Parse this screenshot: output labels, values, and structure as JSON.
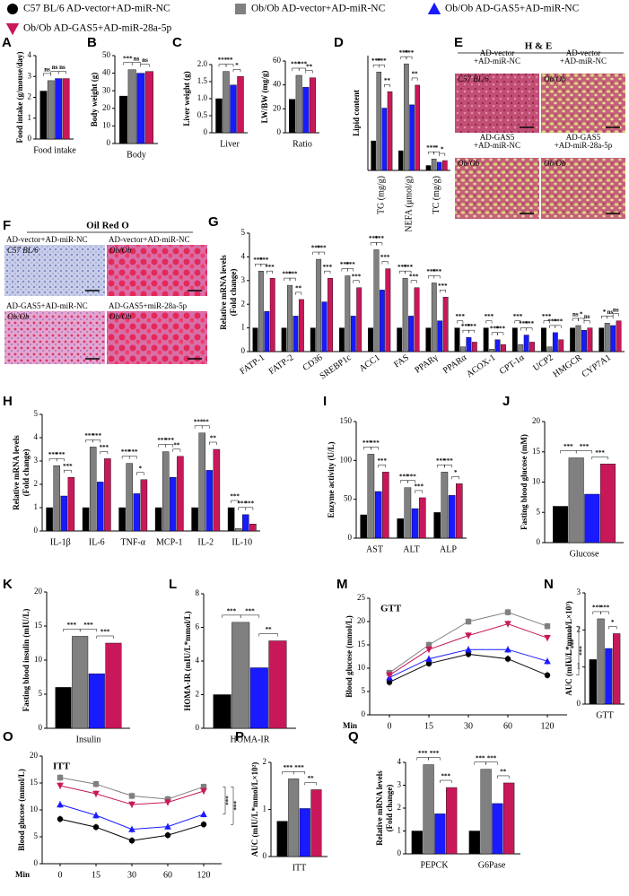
{
  "legend": [
    {
      "name": "C57 BL/6 AD-vector+AD-miR-NC",
      "color": "#000000",
      "marker": "circle"
    },
    {
      "name": "Ob/Ob AD-vector+AD-miR-NC",
      "color": "#808080",
      "marker": "square"
    },
    {
      "name": "Ob/Ob AD-GAS5+AD-miR-NC",
      "color": "#1a1aff",
      "marker": "triangle"
    },
    {
      "name": "Ob/Ob AD-GAS5+AD-miR-28a-5p",
      "color": "#c8185a",
      "marker": "triangle-down"
    }
  ],
  "chart_data": [
    {
      "type": "bar",
      "panel": "A",
      "ylabel": "Food intake (g/mouse/day)",
      "ylim": [
        0,
        4
      ],
      "yticks": [
        0,
        1,
        2,
        3,
        4
      ],
      "categories": [
        "Food intake"
      ],
      "series": [
        {
          "values": [
            2.3
          ]
        },
        {
          "values": [
            2.8
          ]
        },
        {
          "values": [
            2.9
          ]
        },
        {
          "values": [
            2.9
          ]
        }
      ],
      "sig": [
        [
          "ns",
          "ns",
          "ns"
        ]
      ]
    },
    {
      "type": "bar",
      "panel": "B",
      "ylabel": "Body weight (g)",
      "ylim": [
        0,
        50
      ],
      "yticks": [
        0,
        10,
        20,
        30,
        40,
        50
      ],
      "categories": [
        "Body"
      ],
      "series": [
        {
          "values": [
            27
          ]
        },
        {
          "values": [
            42
          ]
        },
        {
          "values": [
            40
          ]
        },
        {
          "values": [
            41
          ]
        }
      ],
      "sig": [
        [
          "***",
          "ns",
          "ns"
        ]
      ]
    },
    {
      "type": "bar",
      "panel": "C",
      "ylabel": "Liver weight (g)",
      "ylim": [
        0,
        2
      ],
      "yticks": [
        0,
        0.5,
        {
          "value": 1,
          "label": "1.0"
        },
        1.5,
        {
          "value": 2,
          "label": "2.0"
        }
      ],
      "categories": [
        "Liver"
      ],
      "series": [
        {
          "values": [
            1.0
          ]
        },
        {
          "values": [
            1.8
          ]
        },
        {
          "values": [
            1.4
          ]
        },
        {
          "values": [
            1.65
          ]
        }
      ],
      "sig": [
        [
          "***",
          "**",
          "*"
        ]
      ]
    },
    {
      "type": "bar",
      "ylabel": "LW/BW (mg/g)",
      "ylim": [
        0,
        60
      ],
      "yticks": [
        0,
        20,
        40,
        60
      ],
      "categories": [
        "Ratio"
      ],
      "series": [
        {
          "values": [
            28
          ]
        },
        {
          "values": [
            48
          ]
        },
        {
          "values": [
            38
          ]
        },
        {
          "values": [
            46
          ]
        }
      ],
      "sig": [
        [
          "***",
          "***",
          "**"
        ]
      ]
    },
    {
      "type": "bar",
      "panel": "D",
      "ylabel": "Lipid content",
      "ylim": [
        0,
        70
      ],
      "yticks": [],
      "categories": [
        "TG (mg/g)",
        "NEFA (μmol/g)",
        "TC (mg/g)"
      ],
      "series": [
        {
          "values": [
            18,
            12,
            3
          ]
        },
        {
          "values": [
            60,
            65,
            7
          ]
        },
        {
          "values": [
            38,
            40,
            5
          ]
        },
        {
          "values": [
            48,
            52,
            6
          ]
        }
      ],
      "sig": [
        [
          "***",
          "***",
          "**"
        ],
        [
          "***",
          "***",
          "**"
        ],
        [
          "***",
          "*",
          "*"
        ]
      ]
    },
    {
      "type": "bar",
      "panel": "G",
      "ylabel": [
        "Relative mRNA levels",
        "(Fold change)"
      ],
      "ylim": [
        0,
        5
      ],
      "yticks": [
        0,
        1,
        2,
        3,
        4,
        5
      ],
      "categories": [
        "FATP-1",
        "FATP-2",
        "CD36",
        "SREBP1c",
        "ACC1",
        "FAS",
        "PPARγ",
        "PPARα",
        "ACOX-1",
        "CPT-1α",
        "UCP2",
        "HMGCR",
        "CYP7A1"
      ],
      "series": [
        {
          "values": [
            1,
            1,
            1,
            1,
            1,
            1,
            1,
            1,
            1,
            1,
            1,
            1,
            1
          ]
        },
        {
          "values": [
            3.4,
            2.8,
            3.9,
            3.2,
            4.3,
            3.1,
            2.9,
            0.2,
            0.1,
            0.3,
            0.2,
            1.1,
            1.2
          ]
        },
        {
          "values": [
            1.7,
            1.5,
            2.1,
            1.5,
            2.6,
            1.5,
            1.3,
            0.6,
            0.5,
            0.7,
            0.8,
            0.9,
            1.1
          ]
        },
        {
          "values": [
            3.1,
            2.2,
            3.1,
            2.7,
            3.5,
            2.7,
            2.3,
            0.4,
            0.3,
            0.4,
            0.5,
            1.0,
            1.3
          ]
        }
      ],
      "sig": [
        [
          "***",
          "***",
          "***"
        ],
        [
          "***",
          "***",
          "**"
        ],
        [
          "***",
          "***",
          "***"
        ],
        [
          "***",
          "***",
          "***"
        ],
        [
          "***",
          "***",
          "***"
        ],
        [
          "***",
          "***",
          "***"
        ],
        [
          "***",
          "***",
          "***"
        ],
        [
          "***",
          "***",
          "***"
        ],
        [
          "***",
          "***",
          "***"
        ],
        [
          "***",
          "***",
          "***"
        ],
        [
          "***",
          "***",
          "***"
        ],
        [
          "ns",
          "*",
          "ns"
        ],
        [
          "*",
          "ns",
          "ns"
        ]
      ]
    },
    {
      "type": "bar",
      "panel": "H",
      "ylabel": [
        "Relative mRNA levels",
        "(Fold change)"
      ],
      "ylim": [
        0,
        5
      ],
      "yticks": [
        0,
        1,
        2,
        3,
        4,
        5
      ],
      "categories": [
        "IL-1β",
        "IL-6",
        "TNF-α",
        "MCP-1",
        "IL-2",
        "IL-10"
      ],
      "series": [
        {
          "values": [
            1,
            1,
            1,
            1,
            1,
            1
          ]
        },
        {
          "values": [
            2.8,
            3.6,
            2.9,
            3.4,
            4.2,
            0.1
          ]
        },
        {
          "values": [
            1.5,
            2.1,
            1.6,
            2.3,
            2.6,
            0.7
          ]
        },
        {
          "values": [
            2.3,
            3.1,
            2.2,
            3.2,
            3.5,
            0.3
          ]
        }
      ],
      "sig": [
        [
          "***",
          "***",
          "***"
        ],
        [
          "***",
          "***",
          "***"
        ],
        [
          "***",
          "***",
          "*"
        ],
        [
          "***",
          "***",
          "**"
        ],
        [
          "***",
          "**",
          "**"
        ],
        [
          "***",
          "***",
          "***"
        ]
      ]
    },
    {
      "type": "bar",
      "panel": "I",
      "ylabel": "Enzyme activity (U/L)",
      "ylim": [
        0,
        150
      ],
      "yticks": [
        0,
        50,
        100,
        150
      ],
      "categories": [
        "AST",
        "ALT",
        "ALP"
      ],
      "series": [
        {
          "values": [
            30,
            25,
            33
          ]
        },
        {
          "values": [
            108,
            65,
            85
          ]
        },
        {
          "values": [
            60,
            38,
            55
          ]
        },
        {
          "values": [
            85,
            52,
            70
          ]
        }
      ],
      "sig": [
        [
          "***",
          "***",
          "***"
        ],
        [
          "***",
          "***",
          "***"
        ],
        [
          "***",
          "***",
          "*"
        ]
      ]
    },
    {
      "type": "bar",
      "panel": "J",
      "ylabel": "Fasting blood glucose (mM)",
      "ylim": [
        0,
        20
      ],
      "yticks": [
        0,
        5,
        10,
        15,
        20
      ],
      "categories": [
        "Glucose"
      ],
      "series": [
        {
          "values": [
            6
          ]
        },
        {
          "values": [
            14
          ]
        },
        {
          "values": [
            8
          ]
        },
        {
          "values": [
            13
          ]
        }
      ],
      "sig": [
        [
          "***",
          "***",
          "***"
        ]
      ]
    },
    {
      "type": "bar",
      "panel": "K",
      "ylabel": "Fasting blood insulin (mIU/L)",
      "ylim": [
        0,
        20
      ],
      "yticks": [
        0,
        5,
        10,
        15,
        20
      ],
      "categories": [
        "Insulin"
      ],
      "series": [
        {
          "values": [
            6
          ]
        },
        {
          "values": [
            13.5
          ]
        },
        {
          "values": [
            8
          ]
        },
        {
          "values": [
            12.5
          ]
        }
      ],
      "sig": [
        [
          "***",
          "***",
          "***"
        ]
      ]
    },
    {
      "type": "bar",
      "panel": "L",
      "ylabel": "HOMA-IR (mIU/L*mmol/L)",
      "ylim": [
        0,
        8
      ],
      "yticks": [
        0,
        2,
        4,
        6,
        8
      ],
      "categories": [
        "HOMA-IR"
      ],
      "series": [
        {
          "values": [
            2
          ]
        },
        {
          "values": [
            6.3
          ]
        },
        {
          "values": [
            3.6
          ]
        },
        {
          "values": [
            5.2
          ]
        }
      ],
      "sig": [
        [
          "***",
          "***",
          "**"
        ]
      ]
    },
    {
      "type": "line",
      "panel": "M",
      "title": "GTT",
      "ylabel": "Blood glucose (mmol/L)",
      "xlabel": "Min",
      "ylim": [
        0,
        25
      ],
      "yticks": [
        0,
        5,
        10,
        15,
        20,
        25
      ],
      "categories": [
        "0",
        "15",
        "30",
        "60",
        "120"
      ],
      "series": [
        {
          "values": [
            7,
            11,
            13,
            12,
            8.5
          ]
        },
        {
          "values": [
            9,
            15,
            20,
            22,
            19
          ]
        },
        {
          "values": [
            8,
            12,
            14,
            14,
            11.5
          ]
        },
        {
          "values": [
            8.5,
            14,
            17,
            19.5,
            16.5
          ]
        }
      ],
      "sig": [
        "***",
        "***"
      ]
    },
    {
      "type": "bar",
      "panel": "N",
      "ylabel": "AUC (mIU/L*mmol/L×10³)",
      "ylim": [
        0,
        3
      ],
      "yticks": [
        0,
        1,
        2,
        3
      ],
      "categories": [
        "GTT"
      ],
      "series": [
        {
          "values": [
            1.2
          ]
        },
        {
          "values": [
            2.3
          ]
        },
        {
          "values": [
            1.5
          ]
        },
        {
          "values": [
            1.9
          ]
        }
      ],
      "sig": [
        [
          "***",
          "***",
          "*"
        ]
      ]
    },
    {
      "type": "line",
      "panel": "O",
      "title": "ITT",
      "ylabel": "Blood glucose (mmol/L)",
      "xlabel": "Min",
      "ylim": [
        0,
        20
      ],
      "yticks": [
        0,
        5,
        10,
        15,
        20
      ],
      "categories": [
        "0",
        "15",
        "30",
        "60",
        "120"
      ],
      "series": [
        {
          "values": [
            8.3,
            6.8,
            4.3,
            5.3,
            7.3
          ]
        },
        {
          "values": [
            16,
            14.8,
            12.6,
            12,
            14.3
          ]
        },
        {
          "values": [
            11,
            9,
            6.4,
            6.9,
            9.2
          ]
        },
        {
          "values": [
            14.5,
            13,
            11,
            11.4,
            13.5
          ]
        }
      ],
      "sig": [
        "***",
        "***"
      ]
    },
    {
      "type": "bar",
      "panel": "P",
      "ylabel": "AUC (mIU/L*mmol/L×10²)",
      "ylim": [
        0,
        2
      ],
      "yticks": [
        0,
        1,
        2
      ],
      "categories": [
        "ITT"
      ],
      "series": [
        {
          "values": [
            0.75
          ]
        },
        {
          "values": [
            1.65
          ]
        },
        {
          "values": [
            1.02
          ]
        },
        {
          "values": [
            1.42
          ]
        }
      ],
      "sig": [
        [
          "***",
          "***",
          "**"
        ]
      ]
    },
    {
      "type": "bar",
      "panel": "Q",
      "ylabel": [
        "Relative mRNA levels",
        "(Fold change)"
      ],
      "ylim": [
        0,
        4
      ],
      "yticks": [
        0,
        1,
        2,
        3,
        4
      ],
      "categories": [
        "PEPCK",
        "G6Pase"
      ],
      "series": [
        {
          "values": [
            1,
            1
          ]
        },
        {
          "values": [
            3.9,
            3.7
          ]
        },
        {
          "values": [
            1.75,
            2.2
          ]
        },
        {
          "values": [
            2.9,
            3.1
          ]
        }
      ],
      "sig": [
        [
          "***",
          "***",
          "***"
        ],
        [
          "***",
          "***",
          "**"
        ]
      ]
    }
  ],
  "histology": [
    {
      "panel": "E",
      "title": "H & E",
      "images": [
        {
          "label": [
            "AD-vector",
            "+AD-miR-NC"
          ],
          "strain": "C57 BL/6"
        },
        {
          "label": [
            "AD-vector",
            "+AD-miR-NC"
          ],
          "strain": "Ob/Ob"
        },
        {
          "label": [
            "AD-GAS5",
            "+AD-miR-NC"
          ],
          "strain": "Ob/Ob"
        },
        {
          "label": [
            "AD-GAS5",
            "+AD-miR-28a-5p"
          ],
          "strain": "Ob/Ob"
        }
      ]
    },
    {
      "panel": "F",
      "title": "Oil Red O",
      "images": [
        {
          "label": [
            "AD-vector+AD-miR-NC"
          ],
          "strain": "C57 BL/6"
        },
        {
          "label": [
            "AD-vector+AD-miR-NC"
          ],
          "strain": "Ob/Ob"
        },
        {
          "label": [
            "AD-GAS5+AD-miR-NC"
          ],
          "strain": "Ob/Ob"
        },
        {
          "label": [
            "AD-GAS5+miR-28a-5p"
          ],
          "strain": "Ob/Ob"
        }
      ]
    }
  ]
}
